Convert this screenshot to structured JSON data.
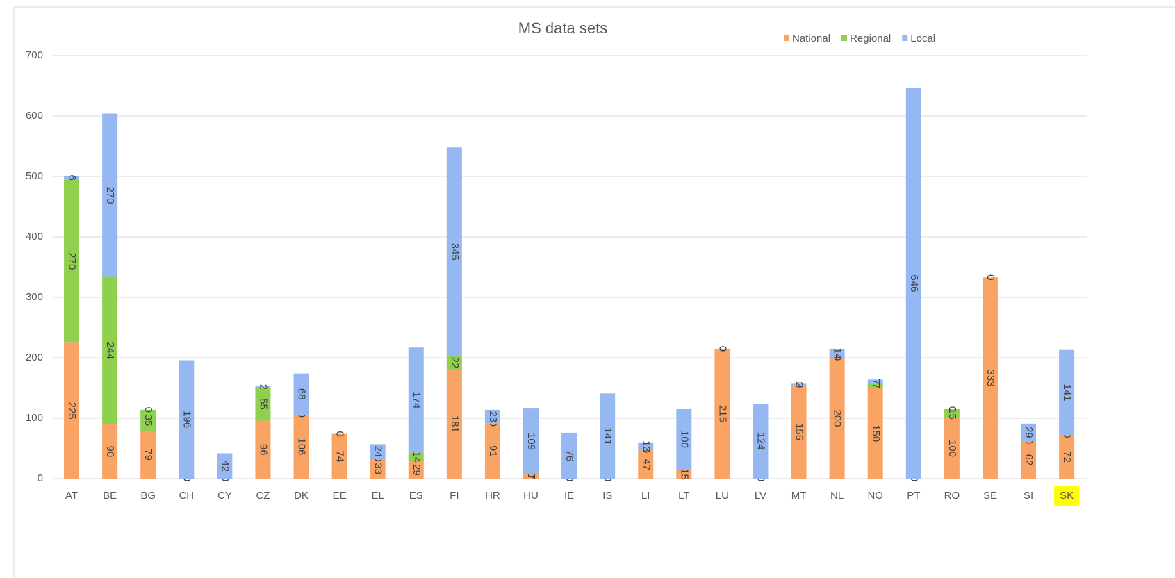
{
  "chart_data": {
    "type": "stacked_bar",
    "title": "MS data sets",
    "categories": [
      "AT",
      "BE",
      "BG",
      "CH",
      "CY",
      "CZ",
      "DK",
      "EE",
      "EL",
      "ES",
      "FI",
      "HR",
      "HU",
      "IE",
      "IS",
      "LI",
      "LT",
      "LU",
      "LV",
      "MT",
      "NL",
      "NO",
      "PT",
      "RO",
      "SE",
      "SI",
      "SK"
    ],
    "series": [
      {
        "name": "National",
        "color": "#f9a465",
        "values": [
          225,
          90,
          79,
          0,
          0,
          96,
          106,
          74,
          33,
          29,
          181,
          91,
          7,
          0,
          0,
          47,
          15,
          215,
          0,
          155,
          200,
          150,
          0,
          100,
          333,
          62,
          72
        ]
      },
      {
        "name": "Regional",
        "color": "#8fd04f",
        "values": [
          270,
          244,
          35,
          0,
          0,
          55,
          0,
          0,
          0,
          14,
          22,
          0,
          0,
          0,
          0,
          0,
          0,
          0,
          0,
          0,
          0,
          7,
          0,
          15,
          0,
          0,
          0
        ]
      },
      {
        "name": "Local",
        "color": "#95b8f2",
        "values": [
          6,
          270,
          0,
          196,
          42,
          2,
          68,
          0,
          24,
          174,
          345,
          23,
          109,
          76,
          141,
          13,
          100,
          0,
          124,
          2,
          14,
          7,
          646,
          0,
          0,
          29,
          141
        ]
      }
    ],
    "ylim": [
      0,
      700
    ],
    "yticks": [
      0,
      100,
      200,
      300,
      400,
      500,
      600,
      700
    ],
    "grid": true,
    "legend": "top-right",
    "highlighted": "SK",
    "highlight_color": "#ffff00"
  }
}
